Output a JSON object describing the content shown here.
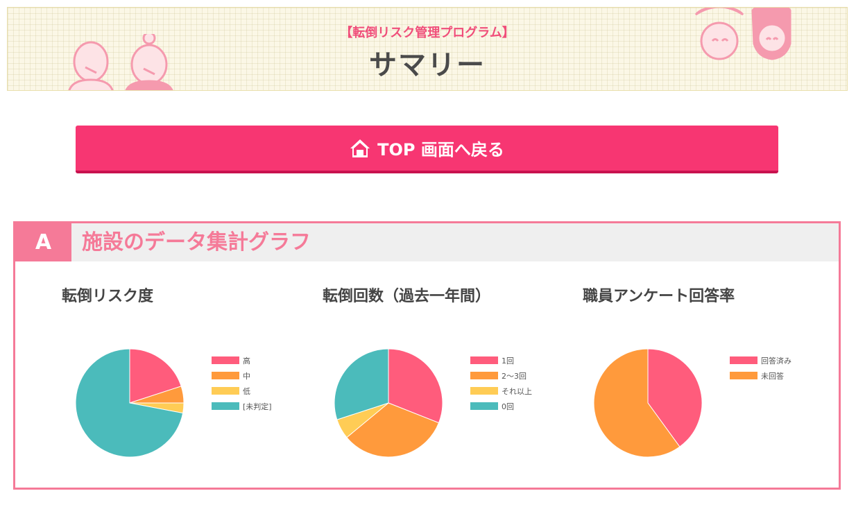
{
  "header": {
    "subtitle": "【転倒リスク管理プログラム】",
    "title": "サマリー"
  },
  "top_button": {
    "label": "TOP 画面へ戻る",
    "icon": "home-icon"
  },
  "section": {
    "letter": "A",
    "title": "施設のデータ集計グラフ"
  },
  "colors": {
    "pink": "#ff5c7c",
    "orange": "#ff9a3c",
    "yellow": "#ffcc55",
    "teal": "#4bbbbb",
    "accent": "#f73672",
    "section_border": "#f57a98"
  },
  "chart_data": [
    {
      "type": "pie",
      "title": "転倒リスク度",
      "categories": [
        "高",
        "中",
        "低",
        "[未判定]"
      ],
      "values": [
        20,
        5,
        3,
        72
      ],
      "colors": [
        "#ff5c7c",
        "#ff9a3c",
        "#ffcc55",
        "#4bbbbb"
      ],
      "legend": "right"
    },
    {
      "type": "pie",
      "title": "転倒回数（過去一年間）",
      "categories": [
        "1回",
        "2〜3回",
        "それ以上",
        "0回"
      ],
      "values": [
        31,
        33,
        6,
        30
      ],
      "colors": [
        "#ff5c7c",
        "#ff9a3c",
        "#ffcc55",
        "#4bbbbb"
      ],
      "legend": "right"
    },
    {
      "type": "pie",
      "title": "職員アンケート回答率",
      "categories": [
        "回答済み",
        "未回答"
      ],
      "values": [
        40,
        60
      ],
      "colors": [
        "#ff5c7c",
        "#ff9a3c"
      ],
      "legend": "right"
    }
  ]
}
